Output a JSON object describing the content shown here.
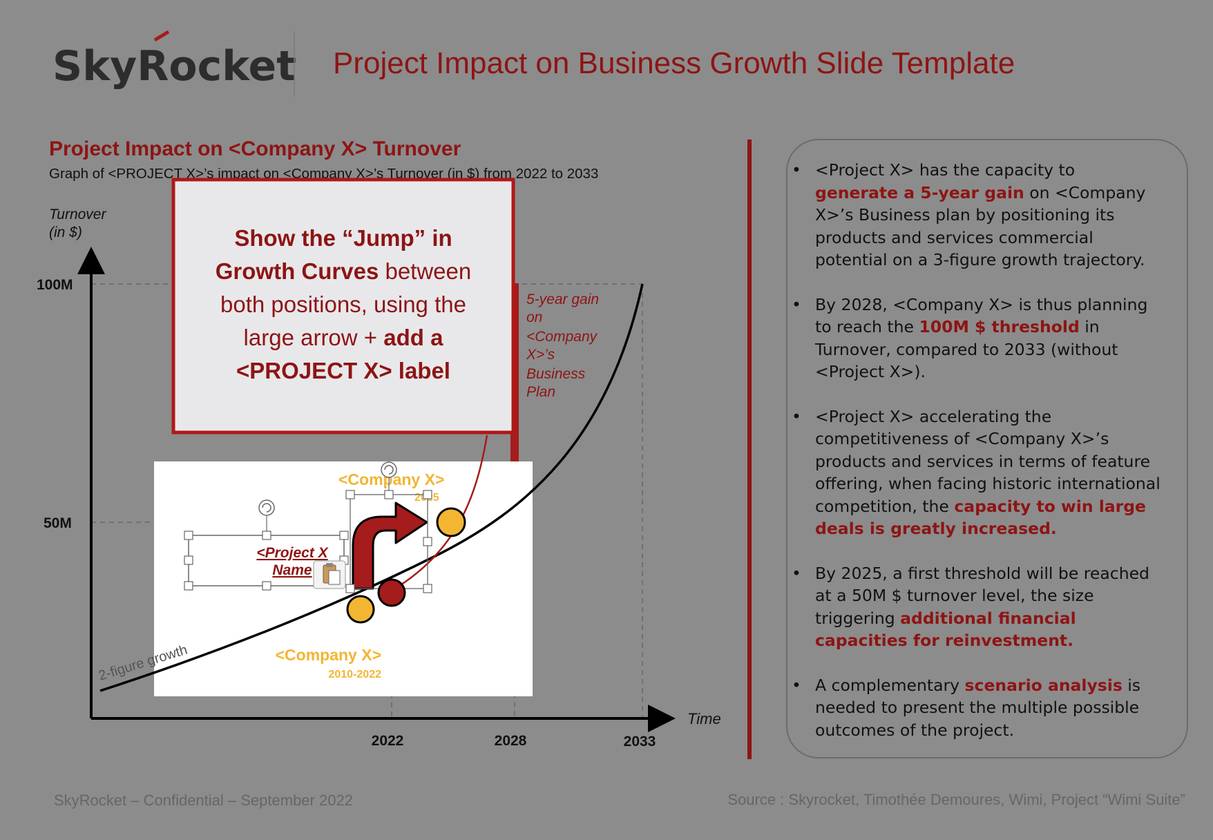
{
  "header": {
    "logo_text": "SkyRocket",
    "title": "Project Impact on Business Growth Slide Template"
  },
  "chart": {
    "heading": "Project Impact on <Company X> Turnover",
    "subtitle": "Graph of <PROJECT X>’s impact on <Company X>’s Turnover (in $) from 2022 to 2033",
    "y_label_line1": "Turnover",
    "y_label_line2": "(in $)",
    "x_label": "Time",
    "y_ticks": [
      "100M",
      "50M"
    ],
    "x_ticks": [
      "2022",
      "2028",
      "2033"
    ],
    "gain_label": [
      "5-year gain",
      "on",
      "<Company",
      "X>’s",
      "Business",
      "Plan"
    ],
    "growth_label": "2-figure growth",
    "company_past": "<Company X>",
    "company_past_years": "2010-2022",
    "company_future": "<Company X>",
    "company_future_year": "2025",
    "project_label_line1": "<Project X",
    "project_label_line2": "Name"
  },
  "callout": {
    "line1": "Show the “Jump” in",
    "line2a": "Growth Curves",
    "line2b": " between",
    "line3": "both positions, using the",
    "line4a": "large arrow + ",
    "line4b": "add a",
    "line5": "<PROJECT X> label"
  },
  "bullets": [
    {
      "parts": [
        {
          "t": "<Project X> has the capacity to "
        },
        {
          "t": "generate a 5-year gain",
          "em": true
        },
        {
          "t": " on <Company X>’s Business plan by positioning its products and services commercial potential on a 3-figure growth trajectory."
        }
      ]
    },
    {
      "parts": [
        {
          "t": "By 2028, <Company X> is thus planning to reach the "
        },
        {
          "t": "100M $ threshold",
          "em": true
        },
        {
          "t": " in Turnover, compared to 2033 (without <Project X>)."
        }
      ]
    },
    {
      "parts": [
        {
          "t": "<Project X> accelerating the competitiveness of <Company X>’s products and services in terms of feature offering, when facing historic international competition, the "
        },
        {
          "t": "capacity to win large deals is greatly increased.",
          "em": true
        }
      ]
    },
    {
      "parts": [
        {
          "t": "By 2025, a first threshold will be reached at a 50M $ turnover level, the size triggering "
        },
        {
          "t": "additional financial capacities for reinvestment.",
          "em": true
        }
      ]
    },
    {
      "parts": [
        {
          "t": "A complementary "
        },
        {
          "t": "scenario analysis",
          "em": true
        },
        {
          "t": " is needed to present the multiple possible outcomes of the project."
        }
      ]
    }
  ],
  "footer": {
    "left": "SkyRocket – Confidential – September 2022",
    "right": "Source : Skyrocket, Timothée Demoures, Wimi, Project “Wimi Suite”"
  },
  "colors": {
    "background": "#8c8c8c",
    "accent_red": "#8e1414",
    "curve_red": "#a51c1c",
    "company_yellow": "#f2b632",
    "callout_fill": "#e8e8ea"
  },
  "icons": [
    "rocket-logo-mark",
    "rotate-handle-icon",
    "paste-options-icon",
    "curved-arrow-icon"
  ]
}
